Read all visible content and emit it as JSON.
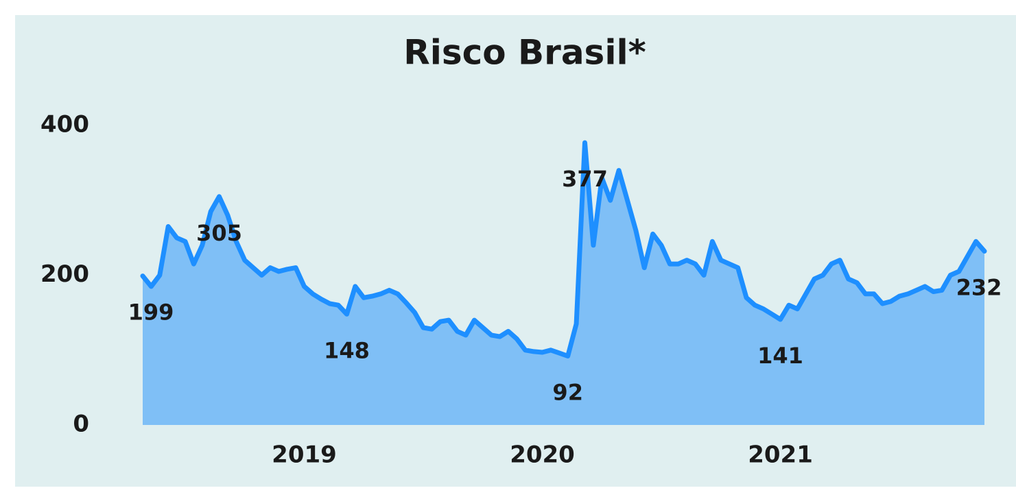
{
  "chart_data": {
    "type": "area",
    "title": "Risco Brasil*",
    "categories": [
      null,
      null,
      null,
      null,
      null,
      null,
      null,
      null,
      null,
      null,
      null,
      null,
      null,
      null,
      null,
      null,
      null,
      null,
      null,
      "2019",
      null,
      null,
      null,
      null,
      null,
      null,
      null,
      null,
      null,
      null,
      null,
      null,
      null,
      null,
      null,
      null,
      null,
      null,
      null,
      null,
      null,
      null,
      null,
      null,
      null,
      null,
      null,
      "2020",
      null,
      null,
      null,
      null,
      null,
      null,
      null,
      null,
      null,
      null,
      null,
      null,
      null,
      null,
      null,
      null,
      null,
      null,
      null,
      null,
      null,
      null,
      null,
      null,
      null,
      null,
      null,
      "2021",
      null,
      null,
      null,
      null,
      null,
      null,
      null,
      null,
      null,
      null,
      null,
      null,
      null,
      null,
      null,
      null,
      null,
      null,
      null,
      null,
      null,
      null,
      null,
      null
    ],
    "values": [
      199,
      185,
      200,
      265,
      250,
      245,
      215,
      240,
      285,
      305,
      280,
      245,
      220,
      210,
      200,
      210,
      205,
      208,
      210,
      185,
      175,
      168,
      162,
      160,
      148,
      185,
      170,
      172,
      175,
      180,
      175,
      163,
      150,
      130,
      128,
      138,
      140,
      125,
      120,
      140,
      130,
      120,
      118,
      125,
      115,
      100,
      98,
      97,
      100,
      96,
      92,
      135,
      377,
      240,
      330,
      300,
      340,
      300,
      260,
      210,
      255,
      240,
      215,
      215,
      220,
      215,
      200,
      245,
      220,
      215,
      210,
      170,
      160,
      155,
      148,
      141,
      160,
      155,
      175,
      195,
      200,
      215,
      220,
      195,
      190,
      175,
      175,
      162,
      165,
      172,
      175,
      180,
      185,
      178,
      180,
      200,
      205,
      225,
      245,
      232
    ],
    "value_labels": [
      null,
      null,
      null,
      null,
      null,
      null,
      null,
      null,
      null,
      "305",
      null,
      null,
      null,
      null,
      null,
      null,
      null,
      null,
      null,
      null,
      null,
      null,
      null,
      null,
      "148",
      null,
      null,
      null,
      null,
      null,
      null,
      null,
      null,
      null,
      null,
      null,
      null,
      null,
      null,
      null,
      null,
      null,
      null,
      null,
      null,
      null,
      null,
      null,
      null,
      null,
      "92",
      null,
      "377",
      null,
      null,
      null,
      null,
      null,
      null,
      null,
      null,
      null,
      null,
      null,
      null,
      null,
      null,
      null,
      null,
      null,
      null,
      null,
      null,
      null,
      null,
      "141",
      null,
      null,
      null,
      null,
      null,
      null,
      null,
      null,
      null,
      null,
      null,
      null,
      null,
      null,
      null,
      null,
      null,
      null,
      null,
      null,
      null,
      null,
      null,
      "232"
    ],
    "first_label": "199",
    "color": "#1e8fff",
    "area_color": "#7fbff6",
    "ylim": [
      0,
      400
    ],
    "yticks": [
      0,
      200,
      400
    ],
    "grid": false
  }
}
